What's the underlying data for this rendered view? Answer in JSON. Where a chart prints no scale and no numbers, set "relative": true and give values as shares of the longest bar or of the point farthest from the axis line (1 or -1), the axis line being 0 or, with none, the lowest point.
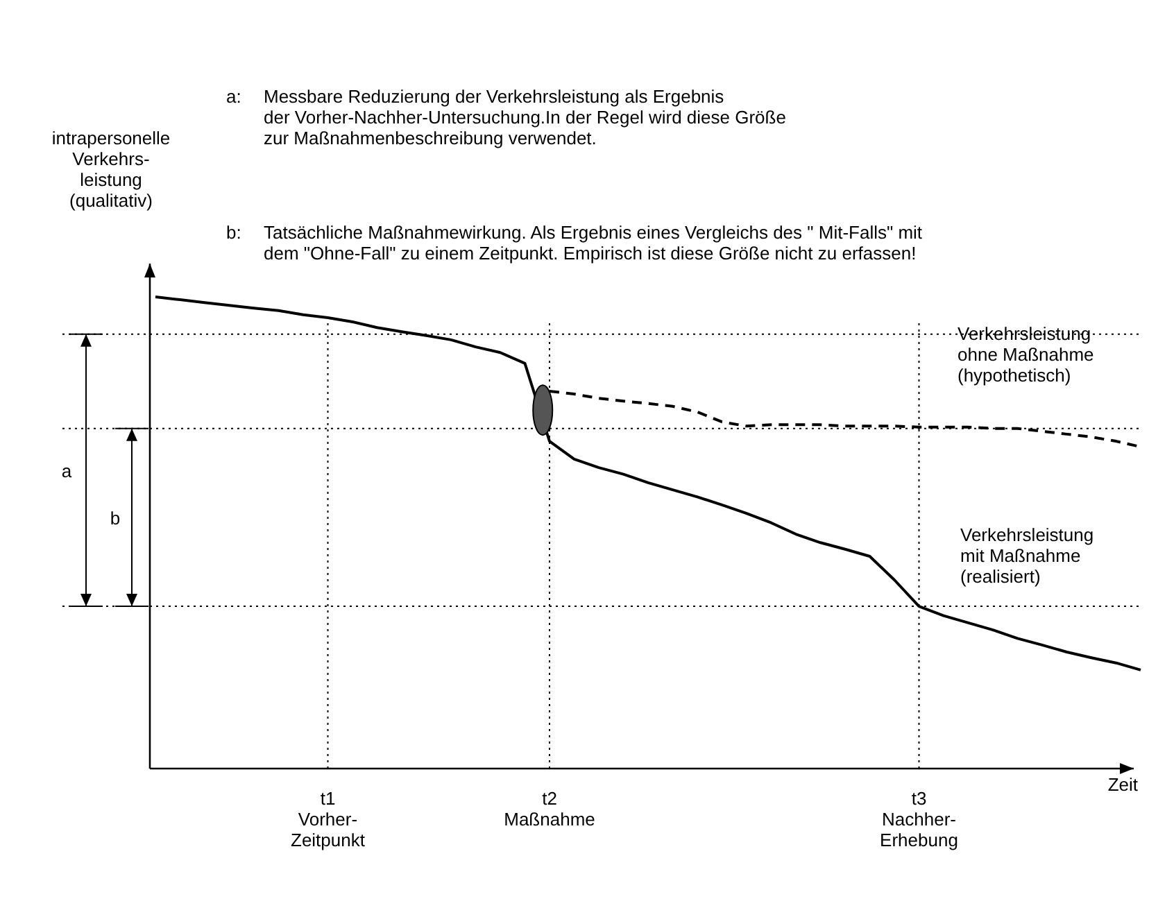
{
  "chart_data": {
    "type": "line",
    "relative": true,
    "xlabel": "Zeit",
    "ylabel": "intrapersonelle\nVerkehrs-\nleistung\n(qualitativ)",
    "categories": [
      null,
      null,
      null,
      null,
      null,
      null,
      null,
      "t1\nVorher-\nZeitpunkt",
      null,
      null,
      null,
      null,
      null,
      null,
      null,
      null,
      "t2\nMaßnahme",
      null,
      null,
      null,
      null,
      null,
      null,
      null,
      null,
      null,
      null,
      null,
      null,
      null,
      null,
      "t3\nNachher-\nErhebung",
      null,
      null,
      null,
      null,
      null,
      null,
      null,
      null,
      null
    ],
    "series": [
      {
        "name": "Verkehrsleistung\nmit Maßnahme\n(realisiert)",
        "color": "#000000",
        "line_style": "solid",
        "values": [
          1.0,
          0.994,
          0.988,
          0.982,
          0.976,
          0.971,
          0.962,
          0.956,
          0.947,
          0.935,
          0.926,
          0.918,
          0.909,
          0.894,
          0.882,
          0.859,
          0.694,
          0.656,
          0.638,
          0.624,
          0.606,
          0.591,
          0.576,
          0.559,
          0.541,
          0.521,
          0.497,
          0.479,
          0.465,
          0.45,
          0.4,
          0.344,
          0.324,
          0.309,
          0.294,
          0.276,
          0.262,
          0.247,
          0.235,
          0.224,
          0.209
        ]
      },
      {
        "name": "Verkehrsleistung\nohne Maßnahme\n(hypothetisch)",
        "color": "#000000",
        "line_style": "dashed",
        "values": [
          null,
          null,
          null,
          null,
          null,
          null,
          null,
          null,
          null,
          null,
          null,
          null,
          null,
          null,
          null,
          null,
          0.8,
          0.794,
          0.785,
          0.779,
          0.774,
          0.768,
          0.756,
          0.735,
          0.726,
          0.729,
          0.729,
          0.729,
          0.726,
          0.726,
          0.726,
          0.724,
          0.724,
          0.724,
          0.721,
          0.721,
          0.715,
          0.709,
          0.703,
          0.694,
          0.682
        ]
      }
    ],
    "ref_lines": [
      {
        "axis": "y",
        "value": 0.921,
        "line_style": "dotted"
      },
      {
        "axis": "y",
        "value": 0.721,
        "line_style": "dotted"
      },
      {
        "axis": "y",
        "value": 0.344,
        "line_style": "dotted"
      }
    ],
    "annotations": [
      "a:\tMessbare Reduzierung der Verkehrsleistung als Ergebnis\nder Vorher-Nachher-Untersuchung.In der Regel wird diese Größe\nzur Maßnahmenbeschreibung verwendet.",
      "b:\tTatsächliche Maßnahmewirkung. Als Ergebnis eines Vergleichs des \" Mit-Falls\" mit\ndem \"Ohne-Fall\" zu einem Zeitpunkt. Empirisch ist diese Größe nicht zu erfassen!",
      "a",
      "b"
    ],
    "grid": "x",
    "legend": false
  }
}
